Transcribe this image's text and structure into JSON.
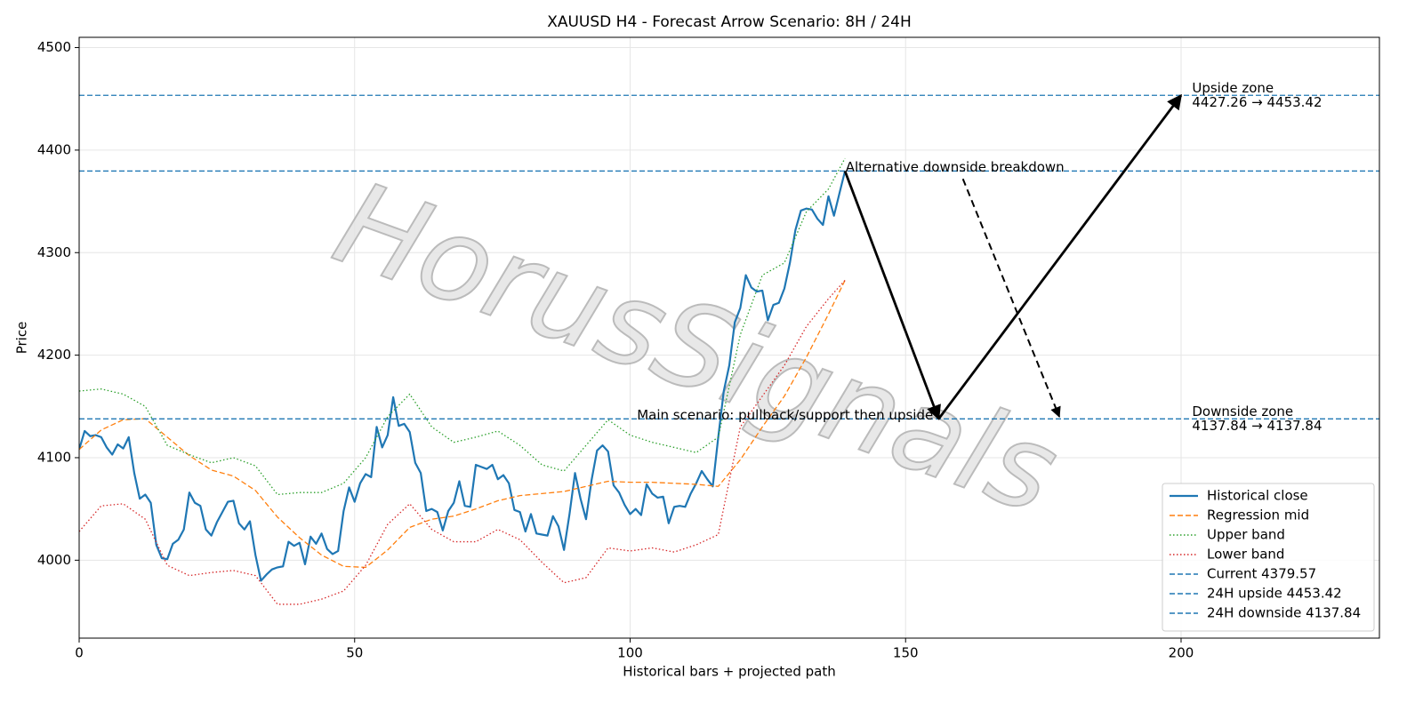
{
  "chart_data": {
    "type": "line",
    "title": "XAUUSD H4 - Forecast Arrow Scenario: 8H / 24H",
    "xlabel": "Historical bars + projected path",
    "ylabel": "Price",
    "watermark": "HorusSignals",
    "xlim": [
      0,
      236
    ],
    "ylim": [
      3924,
      4510
    ],
    "xticks": [
      0,
      50,
      100,
      150,
      200
    ],
    "yticks": [
      4000,
      4100,
      4200,
      4300,
      4400,
      4500
    ],
    "grid": true,
    "legend": "lower right",
    "series": [
      {
        "name": "Historical close",
        "color": "#1f77b4",
        "style": "solid",
        "x": [
          0,
          1,
          2,
          3,
          4,
          5,
          6,
          7,
          8,
          9,
          10,
          11,
          12,
          13,
          14,
          15,
          16,
          17,
          18,
          19,
          20,
          21,
          22,
          23,
          24,
          25,
          26,
          27,
          28,
          29,
          30,
          31,
          32,
          33,
          34,
          35,
          36,
          37,
          38,
          39,
          40,
          41,
          42,
          43,
          44,
          45,
          46,
          47,
          48,
          49,
          50,
          51,
          52,
          53,
          54,
          55,
          56,
          57,
          58,
          59,
          60,
          61,
          62,
          63,
          64,
          65,
          66,
          67,
          68,
          69,
          70,
          71,
          72,
          73,
          74,
          75,
          76,
          77,
          78,
          79,
          80,
          81,
          82,
          83,
          84,
          85,
          86,
          87,
          88,
          89,
          90,
          91,
          92,
          93,
          94,
          95,
          96,
          97,
          98,
          99,
          100,
          101,
          102,
          103,
          104,
          105,
          106,
          107,
          108,
          109,
          110,
          111,
          112,
          113,
          114,
          115,
          116,
          117,
          118,
          119,
          120,
          121,
          122,
          123,
          124,
          125,
          126,
          127,
          128,
          129,
          130,
          131,
          132,
          133,
          134,
          135,
          136,
          137,
          138,
          139
        ],
        "values": [
          4108,
          4126,
          4121,
          4122,
          4120,
          4110,
          4103,
          4113,
          4109,
          4120,
          4085,
          4060,
          4064,
          4056,
          4015,
          4002,
          4001,
          4016,
          4020,
          4030,
          4066,
          4056,
          4053,
          4030,
          4024,
          4037,
          4047,
          4057,
          4058,
          4036,
          4030,
          4038,
          4005,
          3980,
          3986,
          3991,
          3993,
          3994,
          4018,
          4014,
          4017,
          3996,
          4023,
          4016,
          4026,
          4011,
          4006,
          4009,
          4048,
          4071,
          4057,
          4075,
          4084,
          4081,
          4130,
          4110,
          4122,
          4159,
          4131,
          4133,
          4125,
          4095,
          4085,
          4048,
          4050,
          4047,
          4029,
          4048,
          4056,
          4077,
          4053,
          4052,
          4093,
          4091,
          4089,
          4093,
          4079,
          4083,
          4075,
          4049,
          4047,
          4028,
          4045,
          4026,
          4025,
          4024,
          4043,
          4033,
          4010,
          4045,
          4085,
          4060,
          4040,
          4078,
          4107,
          4112,
          4106,
          4073,
          4066,
          4054,
          4045,
          4050,
          4044,
          4074,
          4065,
          4061,
          4062,
          4036,
          4052,
          4053,
          4052,
          4065,
          4075,
          4087,
          4079,
          4072,
          4120,
          4165,
          4190,
          4232,
          4246,
          4278,
          4266,
          4262,
          4263,
          4234,
          4249,
          4251,
          4265,
          4290,
          4322,
          4341,
          4343,
          4342,
          4333,
          4327,
          4355,
          4336,
          4358,
          4379.57
        ]
      },
      {
        "name": "Regression mid",
        "color": "#ff7f0e",
        "style": "dashed",
        "x": [
          0,
          4,
          8,
          12,
          16,
          20,
          24,
          28,
          32,
          36,
          40,
          44,
          48,
          52,
          56,
          60,
          64,
          68,
          72,
          76,
          80,
          84,
          88,
          92,
          96,
          100,
          104,
          108,
          112,
          116,
          120,
          124,
          128,
          132,
          136,
          139
        ],
        "values": [
          4108,
          4127,
          4137,
          4138,
          4120,
          4102,
          4088,
          4082,
          4068,
          4042,
          4022,
          4005,
          3994,
          3993,
          4010,
          4032,
          4040,
          4043,
          4050,
          4058,
          4063,
          4065,
          4067,
          4072,
          4077,
          4076,
          4076,
          4075,
          4074,
          4072,
          4098,
          4130,
          4160,
          4198,
          4240,
          4273
        ]
      },
      {
        "name": "Upper band",
        "color": "#2ca02c",
        "style": "dotted",
        "x": [
          0,
          4,
          8,
          12,
          16,
          20,
          24,
          28,
          32,
          36,
          40,
          44,
          48,
          52,
          56,
          60,
          64,
          68,
          72,
          76,
          80,
          84,
          88,
          92,
          96,
          100,
          104,
          108,
          112,
          116,
          120,
          124,
          128,
          132,
          136,
          139
        ],
        "values": [
          4165,
          4167,
          4162,
          4150,
          4112,
          4103,
          4095,
          4100,
          4092,
          4064,
          4066,
          4066,
          4075,
          4100,
          4140,
          4162,
          4130,
          4115,
          4120,
          4126,
          4112,
          4093,
          4087,
          4112,
          4137,
          4122,
          4115,
          4110,
          4105,
          4120,
          4220,
          4278,
          4290,
          4340,
          4362,
          4392
        ]
      },
      {
        "name": "Lower band",
        "color": "#d62728",
        "style": "dotted",
        "x": [
          0,
          4,
          8,
          12,
          16,
          20,
          24,
          28,
          32,
          36,
          40,
          44,
          48,
          52,
          56,
          60,
          64,
          68,
          72,
          76,
          80,
          84,
          88,
          92,
          96,
          100,
          104,
          108,
          112,
          116,
          120,
          124,
          128,
          132,
          136,
          139
        ],
        "values": [
          4028,
          4053,
          4055,
          4040,
          3995,
          3985,
          3988,
          3990,
          3985,
          3957,
          3957,
          3962,
          3970,
          3995,
          4035,
          4055,
          4030,
          4018,
          4018,
          4030,
          4020,
          3998,
          3978,
          3983,
          4012,
          4009,
          4012,
          4008,
          4015,
          4025,
          4130,
          4160,
          4190,
          4228,
          4255,
          4273
        ]
      },
      {
        "name": "Current 4379.57",
        "color": "#1f77b4",
        "style": "hline",
        "value": 4379.57
      },
      {
        "name": "24H upside 4453.42",
        "color": "#1f77b4",
        "style": "hline",
        "value": 4453.42
      },
      {
        "name": "24H downside 4137.84",
        "color": "#1f77b4",
        "style": "hline",
        "value": 4137.84
      }
    ],
    "arrows": [
      {
        "x1": 139,
        "y1": 4379.57,
        "x2": 156,
        "y2": 4137.84,
        "style": "solid"
      },
      {
        "x1": 156,
        "y1": 4137.84,
        "x2": 200,
        "y2": 4453.42,
        "style": "solid"
      },
      {
        "x1": 160.4,
        "y1": 4372,
        "x2": 177.9,
        "y2": 4140,
        "style": "dashed"
      }
    ],
    "annotations": [
      {
        "lines": [
          "Alternative downside breakdown"
        ],
        "x": 139.1,
        "y": 4383,
        "anchor": "start"
      },
      {
        "lines": [
          "Main scenario: pullback/support then upside"
        ],
        "x": 155,
        "y": 4141,
        "anchor": "end"
      },
      {
        "lines": [
          "Upside zone",
          "4427.26 → 4453.42"
        ],
        "x": 202,
        "y": 4453.42,
        "anchor": "start"
      },
      {
        "lines": [
          "Downside zone",
          "4137.84 → 4137.84"
        ],
        "x": 202,
        "y": 4137.84,
        "anchor": "start"
      }
    ]
  }
}
